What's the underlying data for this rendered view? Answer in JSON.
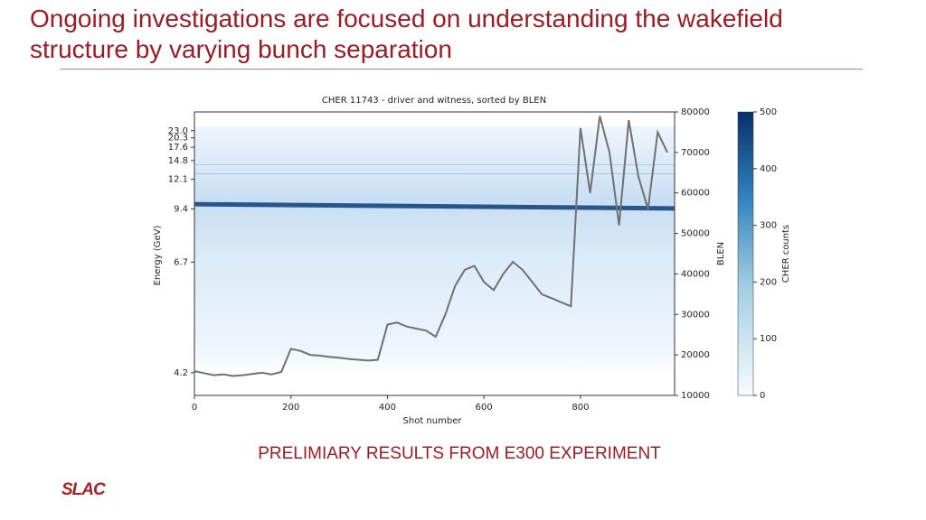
{
  "slide": {
    "title": "Ongoing investigations are focused on understanding the wakefield structure by varying bunch separation",
    "caption": "PRELIMIARY RESULTS FROM E300 EXPERIMENT",
    "logo": "SLAC"
  },
  "chart_data": {
    "type": "line",
    "title": "CHER 11743 - driver and witness, sorted by BLEN",
    "x_label": "Shot number",
    "y_label": "Energy (GeV)",
    "y2_label": "BLEN",
    "xlim": [
      0,
      995
    ],
    "xticks": [
      0,
      200,
      400,
      600,
      800
    ],
    "ylim": [
      3.9,
      35.2
    ],
    "yscale": "inverse",
    "yticks": [
      4.2,
      6.7,
      9.4,
      12.1,
      14.8,
      17.6,
      20.3,
      {
        "value": 23,
        "label": "23.0"
      }
    ],
    "y2lim": [
      10000,
      80000
    ],
    "y2ticks": [
      10000,
      20000,
      30000,
      40000,
      50000,
      60000,
      70000,
      80000
    ],
    "colorbar": {
      "label": "CHER counts",
      "lim": [
        0,
        500
      ],
      "ticks": [
        0,
        100,
        200,
        300,
        400,
        500
      ]
    },
    "series": [
      {
        "color": "#707070",
        "axis": "y2",
        "x": [
          0,
          20,
          40,
          60,
          80,
          100,
          120,
          140,
          160,
          180,
          200,
          220,
          240,
          260,
          280,
          300,
          320,
          340,
          360,
          380,
          400,
          420,
          440,
          460,
          480,
          500,
          520,
          540,
          560,
          580,
          600,
          620,
          640,
          660,
          680,
          700,
          720,
          740,
          760,
          780,
          800,
          820,
          840,
          860,
          880,
          900,
          920,
          940,
          960,
          980
        ],
        "values": [
          16000,
          15500,
          15000,
          15200,
          14800,
          15000,
          15300,
          15600,
          15200,
          15800,
          21500,
          21000,
          20000,
          19800,
          19500,
          19300,
          19000,
          18800,
          18600,
          18800,
          27500,
          28000,
          27000,
          26500,
          26000,
          24500,
          30000,
          37000,
          41000,
          42000,
          38000,
          36000,
          40000,
          43000,
          41000,
          38000,
          35000,
          34000,
          33000,
          32000,
          76000,
          60000,
          79000,
          70000,
          52000,
          78000,
          64000,
          56000,
          75000,
          70000
        ]
      }
    ]
  }
}
